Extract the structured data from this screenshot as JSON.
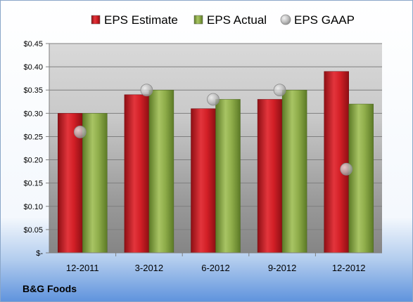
{
  "chart_data": {
    "type": "bar",
    "categories": [
      "12-2011",
      "3-2012",
      "6-2012",
      "9-2012",
      "12-2012"
    ],
    "series": [
      {
        "name": "EPS Estimate",
        "kind": "bar",
        "color": "#c0141c",
        "values": [
          0.3,
          0.34,
          0.31,
          0.33,
          0.39
        ]
      },
      {
        "name": "EPS Actual",
        "kind": "bar",
        "color": "#82a03c",
        "values": [
          0.3,
          0.35,
          0.33,
          0.35,
          0.32
        ]
      },
      {
        "name": "EPS GAAP",
        "kind": "marker",
        "color": "#b0b0b0",
        "values": [
          0.26,
          0.35,
          0.33,
          0.35,
          0.18
        ]
      }
    ],
    "ylim": [
      0,
      0.45
    ],
    "yticks": [
      0,
      0.05,
      0.1,
      0.15,
      0.2,
      0.25,
      0.3,
      0.35,
      0.4,
      0.45
    ],
    "ytick_labels": [
      "$-",
      "$0.05",
      "$0.10",
      "$0.15",
      "$0.20",
      "$0.25",
      "$0.30",
      "$0.35",
      "$0.40",
      "$0.45"
    ],
    "grid": true,
    "legend_position": "top"
  },
  "footer": {
    "label": "B&G Foods"
  }
}
